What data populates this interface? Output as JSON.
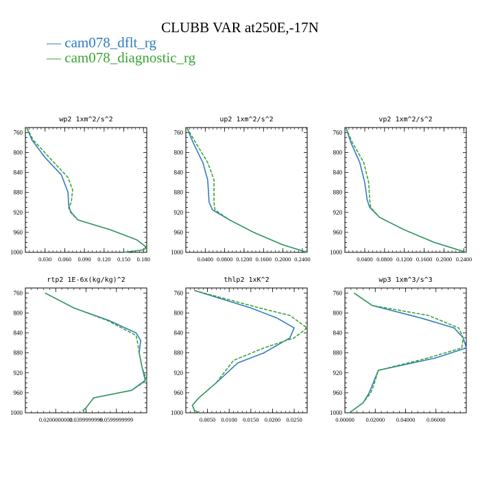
{
  "title": "CLUBB VAR at250E,-17N",
  "legend": [
    {
      "name": "cam078_dflt_rg",
      "color": "#2f7bbf",
      "dash": false
    },
    {
      "name": "cam078_diagnostic_rg",
      "color": "#3aa336",
      "dash": true
    }
  ],
  "chart_data": [
    {
      "type": "line",
      "title": "wp2  1xm^2/s^2",
      "y_ticks": [
        "760",
        "800",
        "840",
        "880",
        "920",
        "960",
        "1000"
      ],
      "x_ticks": [
        "0.030",
        "0.060",
        "0.090",
        "0.120",
        "0.150",
        "0.180"
      ],
      "x_tick_values": [
        0.03,
        0.06,
        0.09,
        0.12,
        0.15,
        0.18
      ],
      "xlim": [
        0.0,
        0.185
      ],
      "ylim": [
        750,
        1000
      ],
      "series": [
        {
          "x": [
            0.002,
            0.01,
            0.03,
            0.055,
            0.065,
            0.066,
            0.068,
            0.07,
            0.08,
            0.13,
            0.17,
            0.185,
            0.18,
            0.15
          ],
          "y": [
            750,
            775,
            810,
            845,
            880,
            905,
            915,
            920,
            935,
            955,
            975,
            990,
            995,
            1000
          ]
        },
        {
          "x": [
            0.002,
            0.012,
            0.04,
            0.065,
            0.072,
            0.07,
            0.066,
            0.069,
            0.08,
            0.13,
            0.17,
            0.185,
            0.18,
            0.15
          ],
          "y": [
            750,
            775,
            815,
            850,
            875,
            900,
            910,
            920,
            935,
            955,
            975,
            990,
            995,
            1000
          ]
        }
      ]
    },
    {
      "type": "line",
      "title": "up2  1xm^2/s^2",
      "y_ticks": [
        "760",
        "800",
        "840",
        "880",
        "920",
        "960",
        "1000"
      ],
      "x_ticks": [
        "0.0400",
        "0.0800",
        "0.1200",
        "0.1600",
        "0.2000",
        "0.2400"
      ],
      "x_tick_values": [
        0.04,
        0.08,
        0.12,
        0.16,
        0.2,
        0.24
      ],
      "xlim": [
        0.0,
        0.25
      ],
      "ylim": [
        750,
        1000
      ],
      "series": [
        {
          "x": [
            0.002,
            0.015,
            0.035,
            0.045,
            0.048,
            0.055,
            0.09,
            0.14,
            0.2,
            0.25
          ],
          "y": [
            750,
            780,
            820,
            855,
            900,
            915,
            935,
            960,
            985,
            1000
          ]
        },
        {
          "x": [
            0.002,
            0.02,
            0.045,
            0.058,
            0.058,
            0.06,
            0.09,
            0.14,
            0.2,
            0.25
          ],
          "y": [
            750,
            780,
            820,
            855,
            900,
            915,
            935,
            960,
            985,
            1000
          ]
        }
      ]
    },
    {
      "type": "line",
      "title": "vp2  1xm^2/s^2",
      "y_ticks": [
        "760",
        "800",
        "840",
        "880",
        "920",
        "960",
        "1000"
      ],
      "x_ticks": [
        "0.0400",
        "0.0800",
        "0.1200",
        "0.1600",
        "0.2000",
        "0.2400"
      ],
      "x_tick_values": [
        0.04,
        0.08,
        0.12,
        0.16,
        0.2,
        0.24
      ],
      "xlim": [
        0.0,
        0.245
      ],
      "ylim": [
        750,
        1000
      ],
      "series": [
        {
          "x": [
            0.002,
            0.012,
            0.03,
            0.04,
            0.045,
            0.05,
            0.07,
            0.12,
            0.18,
            0.245
          ],
          "y": [
            750,
            780,
            820,
            860,
            895,
            910,
            930,
            955,
            980,
            1000
          ]
        },
        {
          "x": [
            0.002,
            0.015,
            0.038,
            0.048,
            0.05,
            0.052,
            0.07,
            0.12,
            0.18,
            0.245
          ],
          "y": [
            750,
            780,
            820,
            860,
            895,
            910,
            930,
            955,
            980,
            1000
          ]
        }
      ]
    },
    {
      "type": "line",
      "title": "rtp2  1E-6x(kg/kg)^2",
      "y_ticks": [
        "760",
        "800",
        "840",
        "880",
        "920",
        "960",
        "1000"
      ],
      "x_ticks": [
        "0.0200000000",
        "0.0399999999",
        "0.0599999999"
      ],
      "x_tick_values": [
        0.02,
        0.04,
        0.06
      ],
      "xlim": [
        0.0,
        0.08
      ],
      "ylim": [
        750,
        1000
      ],
      "series": [
        {
          "x": [
            0.013,
            0.032,
            0.055,
            0.073,
            0.076,
            0.075,
            0.077,
            0.079,
            0.07,
            0.045,
            0.04,
            0.038,
            0.039
          ],
          "y": [
            760,
            790,
            815,
            840,
            855,
            880,
            910,
            935,
            955,
            970,
            990,
            995,
            1000
          ]
        },
        {
          "x": [
            0.013,
            0.032,
            0.054,
            0.073,
            0.074,
            0.075,
            0.077,
            0.08,
            0.07,
            0.045,
            0.04,
            0.038,
            0.039
          ],
          "y": [
            760,
            790,
            815,
            845,
            860,
            880,
            910,
            935,
            955,
            970,
            990,
            995,
            1000
          ]
        }
      ]
    },
    {
      "type": "line",
      "title": "thlp2  1xK^2",
      "y_ticks": [
        "760",
        "800",
        "840",
        "880",
        "920",
        "960",
        "1000"
      ],
      "x_ticks": [
        "0.0050",
        "0.0100",
        "0.0150",
        "0.0200",
        "0.0250"
      ],
      "x_tick_values": [
        0.005,
        0.01,
        0.015,
        0.02,
        0.025
      ],
      "xlim": [
        0.0,
        0.028
      ],
      "ylim": [
        750,
        1000
      ],
      "series": [
        {
          "x": [
            0.002,
            0.015,
            0.021,
            0.025,
            0.024,
            0.018,
            0.012,
            0.007,
            0.003,
            0.0015,
            0.002,
            0.003
          ],
          "y": [
            755,
            790,
            810,
            830,
            850,
            880,
            900,
            940,
            970,
            985,
            995,
            1000
          ]
        },
        {
          "x": [
            0.002,
            0.017,
            0.024,
            0.028,
            0.025,
            0.018,
            0.011,
            0.007,
            0.003,
            0.0015,
            0.002,
            0.003
          ],
          "y": [
            755,
            790,
            805,
            830,
            850,
            870,
            895,
            940,
            970,
            985,
            995,
            1000
          ]
        }
      ]
    },
    {
      "type": "line",
      "title": "wp3  1xm^3/s^3",
      "y_ticks": [
        "760",
        "800",
        "840",
        "880",
        "920",
        "960",
        "1000"
      ],
      "x_ticks": [
        "0.00000",
        "0.02000",
        "0.04000",
        "0.06000"
      ],
      "x_tick_values": [
        0.0,
        0.02,
        0.04,
        0.06
      ],
      "xlim": [
        0.0,
        0.08
      ],
      "ylim": [
        750,
        1000
      ],
      "series": [
        {
          "x": [
            0.006,
            0.018,
            0.05,
            0.072,
            0.078,
            0.08,
            0.06,
            0.022,
            0.018,
            0.016,
            0.012,
            0.003
          ],
          "y": [
            760,
            785,
            810,
            830,
            850,
            870,
            890,
            915,
            945,
            960,
            980,
            1000
          ]
        },
        {
          "x": [
            0.006,
            0.018,
            0.055,
            0.075,
            0.078,
            0.077,
            0.055,
            0.022,
            0.019,
            0.017,
            0.012,
            0.003
          ],
          "y": [
            760,
            785,
            805,
            830,
            850,
            870,
            890,
            915,
            945,
            960,
            980,
            1000
          ]
        }
      ]
    }
  ]
}
